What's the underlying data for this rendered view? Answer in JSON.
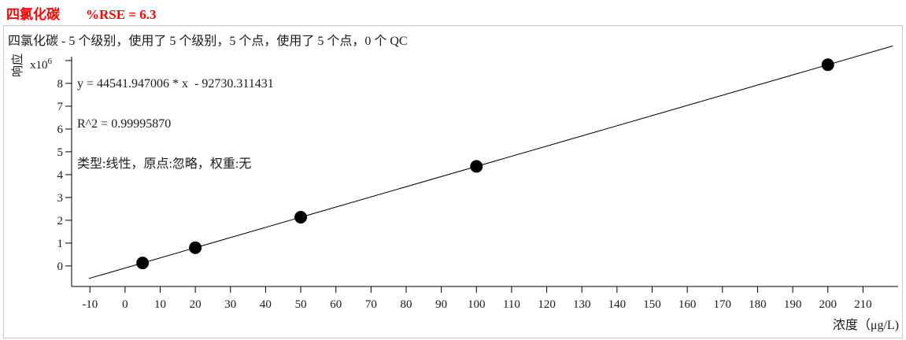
{
  "header": {
    "compound": "四氯化碳",
    "rse": "%RSE = 6.3",
    "color": "#ff0000"
  },
  "panel": {
    "summary": "四氯化碳 - 5 个级别，使用了 5 个级别，5 个点，使用了 5 个点，0 个 QC"
  },
  "chart_data": {
    "type": "scatter",
    "title": "",
    "xlabel": "浓度（μg/L)",
    "ylabel": "响应",
    "y_scale": {
      "base": "x10",
      "exp": "6"
    },
    "annotations": {
      "equation": "y = 44541.947006 * x  - 92730.311431",
      "r_squared": "R^2 = 0.99995870",
      "fit_meta": "类型:线性，原点:忽略，权重:无"
    },
    "x_ticks": [
      -10,
      0,
      10,
      20,
      30,
      40,
      50,
      60,
      70,
      80,
      90,
      100,
      110,
      120,
      130,
      140,
      150,
      160,
      170,
      180,
      190,
      200,
      210
    ],
    "y_ticks": [
      0,
      1,
      2,
      3,
      4,
      5,
      6,
      7,
      8
    ],
    "y_top_tick": 9,
    "xlim": [
      -15.2,
      220
    ],
    "ylim_e6": [
      -0.9,
      9.17
    ],
    "grid": false,
    "legend": false,
    "points": [
      {
        "x": 5,
        "y": 129979
      },
      {
        "x": 20,
        "y": 798109
      },
      {
        "x": 50,
        "y": 2134367
      },
      {
        "x": 100,
        "y": 4361464
      },
      {
        "x": 200,
        "y": 8815659
      }
    ],
    "fit": {
      "slope": 44541.947006,
      "intercept": -92730.311431,
      "r2": 0.9999587,
      "line_x_range": [
        -10.3,
        218.5
      ]
    },
    "point_color": "#000000",
    "line_color": "#000000"
  }
}
